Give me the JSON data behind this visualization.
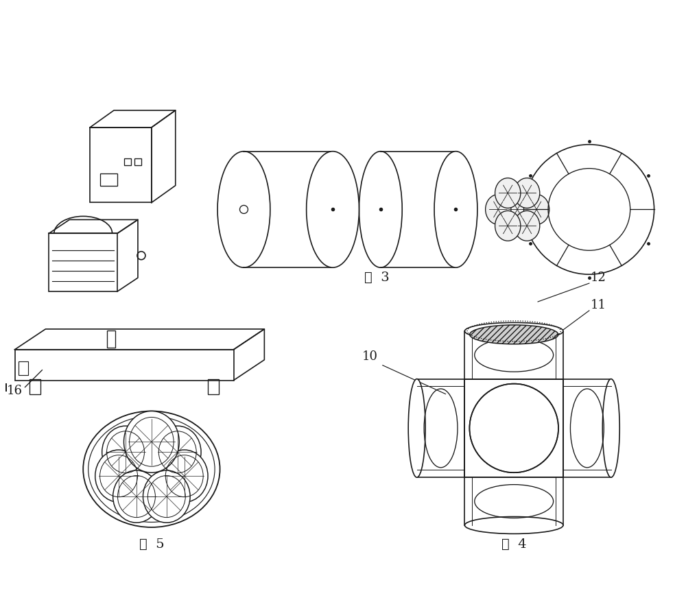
{
  "bg_color": "#ffffff",
  "line_color": "#1a1a1a",
  "line_width": 1.2,
  "fig3_label": "图  3",
  "fig4_label": "图  4",
  "fig5_label": "图  5",
  "label_16": "16",
  "label_10": "10",
  "label_11": "11",
  "label_12": "12",
  "font_size_label": 13,
  "font_size_fig": 14
}
